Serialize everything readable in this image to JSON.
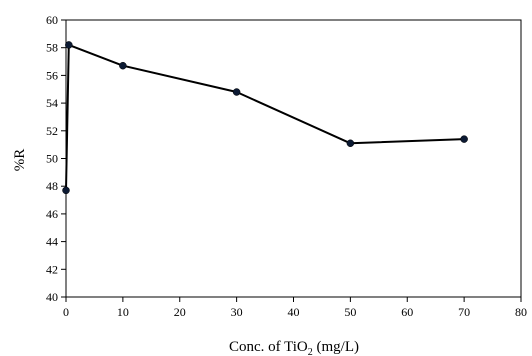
{
  "chart_data": {
    "type": "line",
    "xlabel": "Conc. of TiO",
    "xlabel_subscript": "2",
    "xlabel_suffix": " (mg/L)",
    "ylabel": "%R",
    "xlim": [
      0,
      80
    ],
    "ylim": [
      40,
      60
    ],
    "x_ticks": [
      0,
      10,
      20,
      30,
      40,
      50,
      60,
      70,
      80
    ],
    "y_ticks": [
      40,
      42,
      44,
      46,
      48,
      50,
      52,
      54,
      56,
      58,
      60
    ],
    "grid": false,
    "series": [
      {
        "x": [
          0,
          0.5,
          10,
          30,
          50,
          70
        ],
        "y": [
          47.7,
          58.2,
          56.7,
          54.8,
          51.1,
          51.4
        ],
        "color": "#000000",
        "marker": "circle"
      }
    ]
  }
}
